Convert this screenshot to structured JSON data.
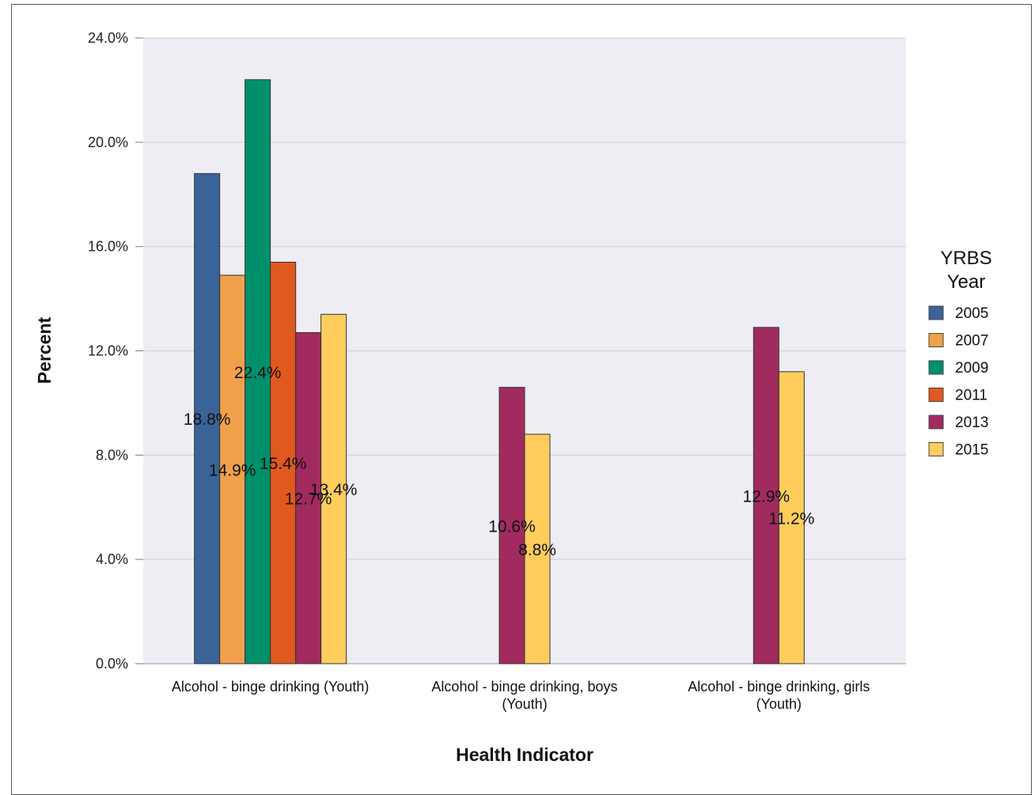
{
  "chart_data": {
    "type": "bar",
    "xlabel": "Health Indicator",
    "ylabel": "Percent",
    "ylim": [
      0,
      24
    ],
    "yticks": [
      "0.0%",
      "4.0%",
      "8.0%",
      "12.0%",
      "16.0%",
      "20.0%",
      "24.0%"
    ],
    "grid": true,
    "categories": [
      [
        "Alcohol - binge drinking (Youth)"
      ],
      [
        "Alcohol - binge drinking, boys",
        "(Youth)"
      ],
      [
        "Alcohol - binge drinking, girls",
        "(Youth)"
      ]
    ],
    "legend": {
      "title": [
        "YRBS",
        "Year"
      ],
      "placement": "right"
    },
    "series": [
      {
        "name": "2005",
        "color": "#3a6398",
        "values": [
          18.8,
          null,
          null
        ],
        "labels": [
          "18.8%",
          "",
          ""
        ]
      },
      {
        "name": "2007",
        "color": "#f0a04b",
        "values": [
          14.9,
          null,
          null
        ],
        "labels": [
          "14.9%",
          "",
          ""
        ]
      },
      {
        "name": "2009",
        "color": "#00906b",
        "values": [
          22.4,
          null,
          null
        ],
        "labels": [
          "22.4%",
          "",
          ""
        ]
      },
      {
        "name": "2011",
        "color": "#e0591e",
        "values": [
          15.4,
          null,
          null
        ],
        "labels": [
          "15.4%",
          "",
          ""
        ]
      },
      {
        "name": "2013",
        "color": "#a12b5e",
        "values": [
          12.7,
          10.6,
          12.9
        ],
        "labels": [
          "12.7%",
          "10.6%",
          "12.9%"
        ]
      },
      {
        "name": "2015",
        "color": "#fecd5c",
        "values": [
          13.4,
          8.8,
          11.2
        ],
        "labels": [
          "13.4%",
          "8.8%",
          "11.2%"
        ]
      }
    ]
  }
}
